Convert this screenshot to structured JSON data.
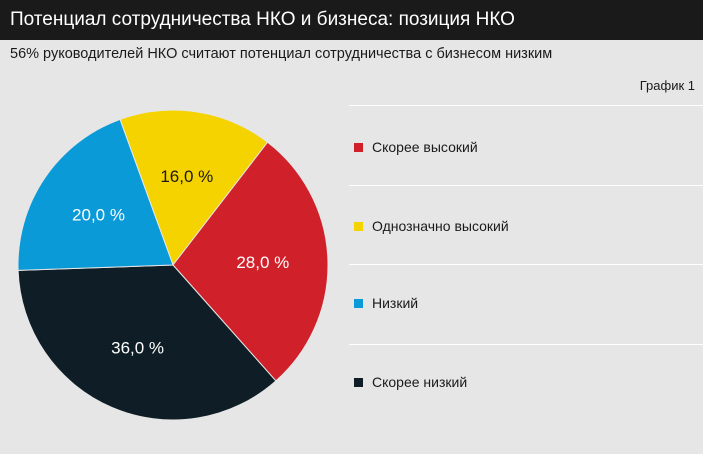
{
  "header": {
    "title": "Потенциал сотрудничества НКО и бизнеса: позиция НКО",
    "subtitle": "56% руководителей НКО считают потенциал сотрудничества с бизнесом низким",
    "graph_label": "График 1"
  },
  "chart_data": {
    "type": "pie",
    "start_angle_deg": -20,
    "slices": [
      {
        "label": "Однозначно высокий",
        "value": 16.0,
        "display": "16,0 %",
        "color": "#f5d300",
        "text_color": "#1a1a1a"
      },
      {
        "label": "Скорее высокий",
        "value": 28.0,
        "display": "28,0 %",
        "color": "#d0202a",
        "text_color": "#ffffff"
      },
      {
        "label": "Скорее низкий",
        "value": 36.0,
        "display": "36,0 %",
        "color": "#0f1e26",
        "text_color": "#ffffff"
      },
      {
        "label": "Низкий",
        "value": 20.0,
        "display": "20,0 %",
        "color": "#0a9ad8",
        "text_color": "#ffffff"
      }
    ],
    "legend": [
      {
        "label": "Скорее высокий",
        "color": "#d0202a"
      },
      {
        "label": "Однозначно высокий",
        "color": "#f5d300"
      },
      {
        "label": "Низкий",
        "color": "#0a9ad8"
      },
      {
        "label": "Скорее низкий",
        "color": "#0f1e26"
      }
    ],
    "legend_position": "right"
  }
}
